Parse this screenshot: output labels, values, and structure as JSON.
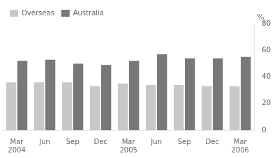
{
  "chart_data": {
    "type": "bar",
    "categories": [
      "Mar\n2004",
      "Jun",
      "Sep",
      "Dec",
      "Mar\n2005",
      "Jun",
      "Sep",
      "Dec",
      "Mar\n2006"
    ],
    "series": [
      {
        "name": "Overseas",
        "color": "#c8c8c8",
        "values": [
          36,
          36,
          36,
          33,
          35,
          34,
          34,
          33,
          33
        ]
      },
      {
        "name": "Australia",
        "color": "#787878",
        "values": [
          52,
          53,
          50,
          49,
          52,
          57,
          54,
          54,
          55
        ]
      }
    ],
    "ylabel": "%",
    "ylim": [
      0,
      80
    ],
    "yticks": [
      0,
      20,
      40,
      60,
      80
    ],
    "grid": false,
    "legend": "upper left"
  }
}
